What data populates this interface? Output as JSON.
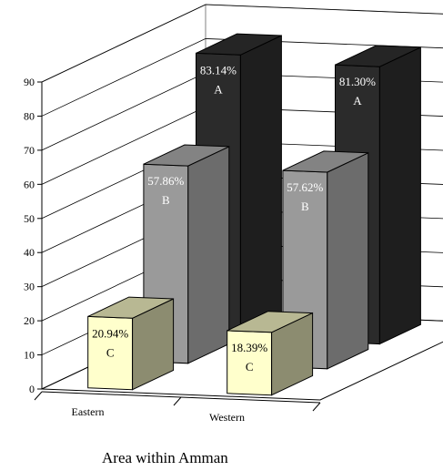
{
  "chart_data": {
    "type": "bar",
    "title": "",
    "xlabel": "Area within Amman",
    "ylabel": "",
    "ylim": [
      0,
      90
    ],
    "yticks": [
      0,
      10,
      20,
      30,
      40,
      50,
      60,
      70,
      80,
      90
    ],
    "categories": [
      "Eastern",
      "Western"
    ],
    "grid": true,
    "three_d": true,
    "series": [
      {
        "name": "A",
        "values": [
          83.14,
          81.3
        ],
        "labels": [
          "83.14%",
          "81.30%"
        ],
        "color": "#2b2b2b",
        "text_color": "#ffffff"
      },
      {
        "name": "B",
        "values": [
          57.86,
          57.62
        ],
        "labels": [
          "57.86%",
          "57.62%"
        ],
        "color": "#9a9a9a",
        "text_color": "#ffffff"
      },
      {
        "name": "C",
        "values": [
          20.94,
          18.39
        ],
        "labels": [
          "20.94%",
          "18.39%"
        ],
        "color": "#ffffcc",
        "text_color": "#000000"
      }
    ]
  }
}
